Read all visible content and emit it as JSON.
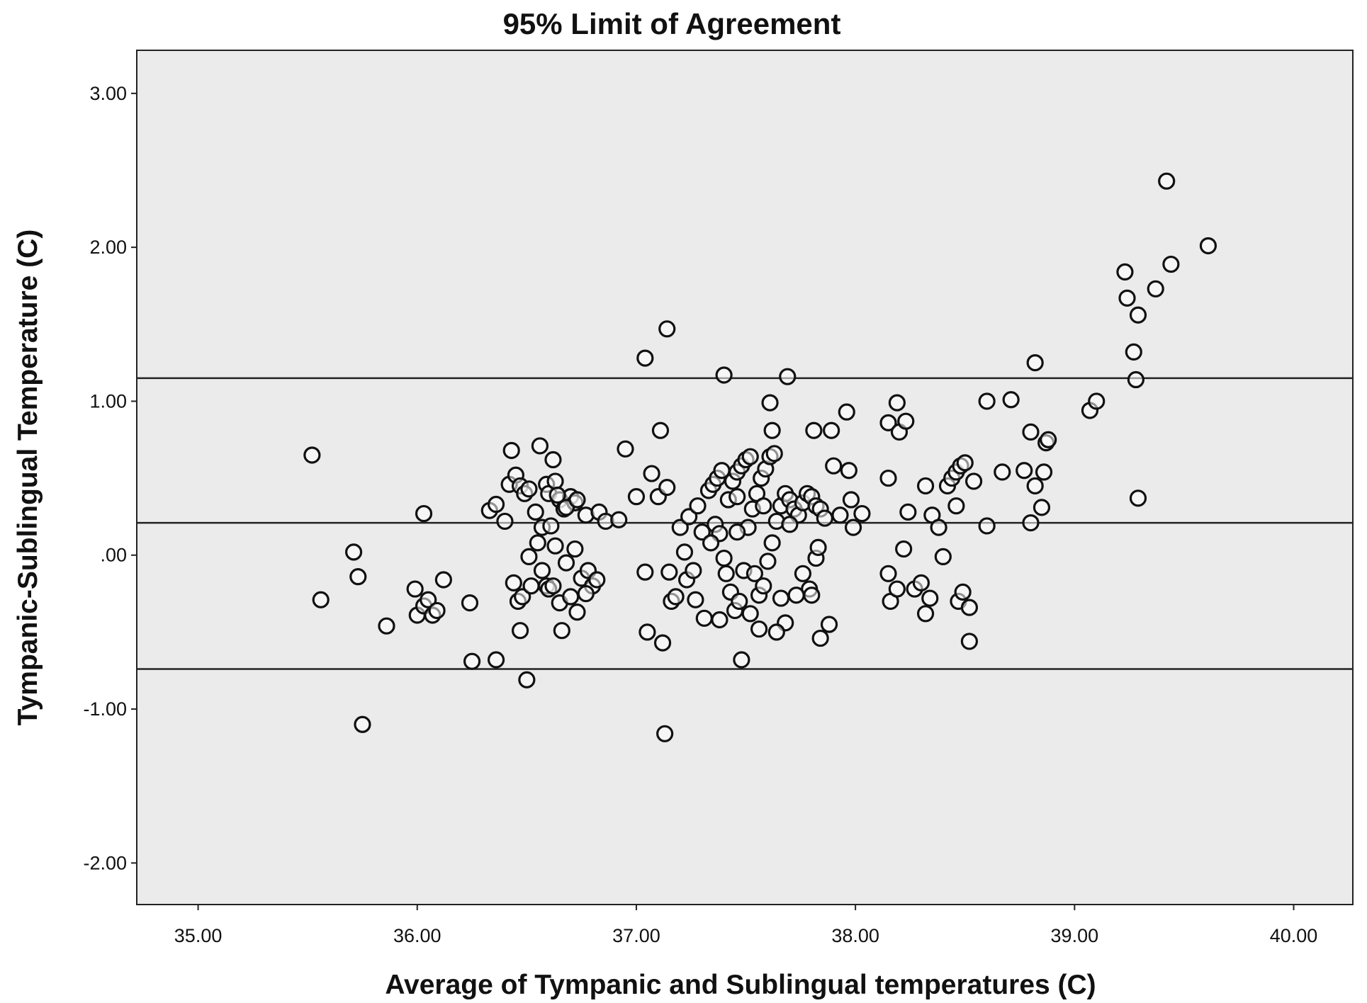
{
  "chart_data": {
    "type": "scatter",
    "title": "95% Limit of Agreement",
    "xlabel": "Average of Tympanic and Sublingual temperatures (C)",
    "ylabel": "Tympanic-Sublingual Temperature (C)",
    "xlim": [
      34.72,
      40.27
    ],
    "ylim": [
      -2.27,
      3.28
    ],
    "xticks": [
      35,
      36,
      37,
      38,
      39,
      40
    ],
    "xtick_labels": [
      "35.00",
      "36.00",
      "37.00",
      "38.00",
      "39.00",
      "40.00"
    ],
    "yticks": [
      3,
      2,
      1,
      0,
      -1,
      -2
    ],
    "ytick_labels": [
      "3.00",
      "2.00",
      "1.00",
      ".00",
      "-1.00",
      "-2.00"
    ],
    "grid": false,
    "reference_lines": [
      1.15,
      0.21,
      -0.74
    ],
    "colors": {
      "background": "#ebebeb",
      "marker_stroke": "#111111",
      "marker_fill": "#ffffff",
      "line": "#222222"
    },
    "points": [
      [
        35.52,
        0.65
      ],
      [
        35.56,
        -0.29
      ],
      [
        35.71,
        0.02
      ],
      [
        35.73,
        -0.14
      ],
      [
        35.75,
        -1.1
      ],
      [
        35.86,
        -0.46
      ],
      [
        36.03,
        0.27
      ],
      [
        35.99,
        -0.22
      ],
      [
        36.0,
        -0.39
      ],
      [
        36.03,
        -0.33
      ],
      [
        36.05,
        -0.29
      ],
      [
        36.07,
        -0.39
      ],
      [
        36.09,
        -0.36
      ],
      [
        36.12,
        -0.16
      ],
      [
        36.24,
        -0.31
      ],
      [
        36.25,
        -0.69
      ],
      [
        36.36,
        -0.68
      ],
      [
        36.33,
        0.29
      ],
      [
        36.36,
        0.33
      ],
      [
        36.4,
        0.22
      ],
      [
        36.43,
        0.68
      ],
      [
        36.42,
        0.46
      ],
      [
        36.45,
        0.52
      ],
      [
        36.47,
        0.45
      ],
      [
        36.49,
        0.4
      ],
      [
        36.51,
        0.43
      ],
      [
        36.54,
        0.28
      ],
      [
        36.56,
        0.71
      ],
      [
        36.59,
        0.46
      ],
      [
        36.6,
        0.4
      ],
      [
        36.62,
        0.62
      ],
      [
        36.63,
        0.48
      ],
      [
        36.65,
        0.36
      ],
      [
        36.67,
        0.3
      ],
      [
        36.7,
        0.38
      ],
      [
        36.72,
        0.34
      ],
      [
        36.77,
        0.26
      ],
      [
        36.83,
        0.28
      ],
      [
        36.86,
        0.22
      ],
      [
        36.92,
        0.23
      ],
      [
        36.95,
        0.69
      ],
      [
        36.57,
        0.18
      ],
      [
        36.68,
        0.31
      ],
      [
        36.73,
        0.36
      ],
      [
        36.64,
        0.39
      ],
      [
        36.61,
        0.19
      ],
      [
        36.44,
        -0.18
      ],
      [
        36.46,
        -0.3
      ],
      [
        36.47,
        -0.49
      ],
      [
        36.48,
        -0.27
      ],
      [
        36.51,
        -0.01
      ],
      [
        36.52,
        -0.2
      ],
      [
        36.55,
        0.08
      ],
      [
        36.57,
        -0.1
      ],
      [
        36.59,
        -0.2
      ],
      [
        36.6,
        -0.22
      ],
      [
        36.63,
        0.06
      ],
      [
        36.65,
        -0.31
      ],
      [
        36.66,
        -0.49
      ],
      [
        36.68,
        -0.05
      ],
      [
        36.7,
        -0.27
      ],
      [
        36.72,
        0.04
      ],
      [
        36.73,
        -0.37
      ],
      [
        36.75,
        -0.15
      ],
      [
        36.78,
        -0.1
      ],
      [
        36.8,
        -0.2
      ],
      [
        36.82,
        -0.16
      ],
      [
        36.77,
        -0.25
      ],
      [
        36.5,
        -0.81
      ],
      [
        36.62,
        -0.2
      ],
      [
        37.0,
        0.38
      ],
      [
        37.04,
        -0.11
      ],
      [
        37.05,
        -0.5
      ],
      [
        37.07,
        0.53
      ],
      [
        37.1,
        0.38
      ],
      [
        37.11,
        0.81
      ],
      [
        37.12,
        -0.57
      ],
      [
        37.14,
        0.44
      ],
      [
        37.13,
        -1.16
      ],
      [
        37.04,
        1.28
      ],
      [
        37.14,
        1.47
      ],
      [
        37.15,
        -0.11
      ],
      [
        37.16,
        -0.3
      ],
      [
        37.18,
        -0.27
      ],
      [
        37.2,
        0.18
      ],
      [
        37.22,
        0.02
      ],
      [
        37.24,
        0.25
      ],
      [
        37.23,
        -0.16
      ],
      [
        37.26,
        -0.1
      ],
      [
        37.27,
        -0.29
      ],
      [
        37.28,
        0.32
      ],
      [
        37.3,
        0.15
      ],
      [
        37.31,
        -0.41
      ],
      [
        37.33,
        0.42
      ],
      [
        37.35,
        0.46
      ],
      [
        37.37,
        0.5
      ],
      [
        37.39,
        0.55
      ],
      [
        37.36,
        0.2
      ],
      [
        37.38,
        0.14
      ],
      [
        37.4,
        -0.02
      ],
      [
        37.42,
        0.36
      ],
      [
        37.44,
        0.48
      ],
      [
        37.46,
        0.54
      ],
      [
        37.48,
        0.58
      ],
      [
        37.5,
        0.62
      ],
      [
        37.52,
        0.64
      ],
      [
        37.41,
        -0.12
      ],
      [
        37.43,
        -0.24
      ],
      [
        37.45,
        -0.36
      ],
      [
        37.47,
        -0.3
      ],
      [
        37.49,
        -0.1
      ],
      [
        37.51,
        0.18
      ],
      [
        37.53,
        0.3
      ],
      [
        37.55,
        0.4
      ],
      [
        37.57,
        0.5
      ],
      [
        37.59,
        0.56
      ],
      [
        37.61,
        0.64
      ],
      [
        37.63,
        0.66
      ],
      [
        37.54,
        -0.12
      ],
      [
        37.56,
        -0.26
      ],
      [
        37.58,
        -0.2
      ],
      [
        37.6,
        -0.04
      ],
      [
        37.62,
        0.08
      ],
      [
        37.64,
        0.22
      ],
      [
        37.66,
        0.32
      ],
      [
        37.68,
        0.4
      ],
      [
        37.7,
        0.36
      ],
      [
        37.72,
        0.3
      ],
      [
        37.74,
        0.26
      ],
      [
        37.76,
        0.34
      ],
      [
        37.78,
        0.4
      ],
      [
        37.8,
        0.38
      ],
      [
        37.82,
        0.32
      ],
      [
        37.84,
        0.3
      ],
      [
        37.86,
        0.24
      ],
      [
        37.79,
        -0.22
      ],
      [
        37.8,
        -0.26
      ],
      [
        37.82,
        -0.02
      ],
      [
        37.83,
        0.05
      ],
      [
        37.76,
        -0.12
      ],
      [
        37.66,
        -0.28
      ],
      [
        37.68,
        -0.44
      ],
      [
        37.64,
        -0.5
      ],
      [
        37.56,
        -0.48
      ],
      [
        37.52,
        -0.38
      ],
      [
        37.48,
        -0.68
      ],
      [
        37.38,
        -0.42
      ],
      [
        37.4,
        1.17
      ],
      [
        37.69,
        1.16
      ],
      [
        37.61,
        0.99
      ],
      [
        37.62,
        0.81
      ],
      [
        37.81,
        0.81
      ],
      [
        37.89,
        0.81
      ],
      [
        37.96,
        0.93
      ],
      [
        37.9,
        0.58
      ],
      [
        37.97,
        0.55
      ],
      [
        37.98,
        0.36
      ],
      [
        37.99,
        0.18
      ],
      [
        38.03,
        0.27
      ],
      [
        37.93,
        0.26
      ],
      [
        37.84,
        -0.54
      ],
      [
        37.88,
        -0.45
      ],
      [
        37.73,
        -0.26
      ],
      [
        37.7,
        0.2
      ],
      [
        37.58,
        0.32
      ],
      [
        37.46,
        0.38
      ],
      [
        37.34,
        0.08
      ],
      [
        37.46,
        0.15
      ],
      [
        38.15,
        0.86
      ],
      [
        38.19,
        0.99
      ],
      [
        38.2,
        0.8
      ],
      [
        38.23,
        0.87
      ],
      [
        38.15,
        0.5
      ],
      [
        38.15,
        -0.12
      ],
      [
        38.16,
        -0.3
      ],
      [
        38.19,
        -0.22
      ],
      [
        38.22,
        0.04
      ],
      [
        38.24,
        0.28
      ],
      [
        38.27,
        -0.22
      ],
      [
        38.3,
        -0.18
      ],
      [
        38.32,
        -0.38
      ],
      [
        38.34,
        -0.28
      ],
      [
        38.32,
        0.45
      ],
      [
        38.35,
        0.26
      ],
      [
        38.38,
        0.18
      ],
      [
        38.4,
        -0.01
      ],
      [
        38.42,
        0.45
      ],
      [
        38.44,
        0.5
      ],
      [
        38.46,
        0.54
      ],
      [
        38.48,
        0.58
      ],
      [
        38.5,
        0.6
      ],
      [
        38.46,
        0.32
      ],
      [
        38.47,
        -0.3
      ],
      [
        38.49,
        -0.24
      ],
      [
        38.52,
        -0.34
      ],
      [
        38.52,
        -0.56
      ],
      [
        38.54,
        0.48
      ],
      [
        38.6,
        0.19
      ],
      [
        38.6,
        1.0
      ],
      [
        38.67,
        0.54
      ],
      [
        38.71,
        1.01
      ],
      [
        38.77,
        0.55
      ],
      [
        38.8,
        0.8
      ],
      [
        38.8,
        0.21
      ],
      [
        38.82,
        0.45
      ],
      [
        38.82,
        1.25
      ],
      [
        38.85,
        0.31
      ],
      [
        38.86,
        0.54
      ],
      [
        38.87,
        0.73
      ],
      [
        38.88,
        0.75
      ],
      [
        39.07,
        0.94
      ],
      [
        39.1,
        1.0
      ],
      [
        39.23,
        1.84
      ],
      [
        39.24,
        1.67
      ],
      [
        39.27,
        1.32
      ],
      [
        39.28,
        1.14
      ],
      [
        39.29,
        1.56
      ],
      [
        39.29,
        0.37
      ],
      [
        39.37,
        1.73
      ],
      [
        39.42,
        2.43
      ],
      [
        39.44,
        1.89
      ],
      [
        39.61,
        2.01
      ]
    ]
  }
}
